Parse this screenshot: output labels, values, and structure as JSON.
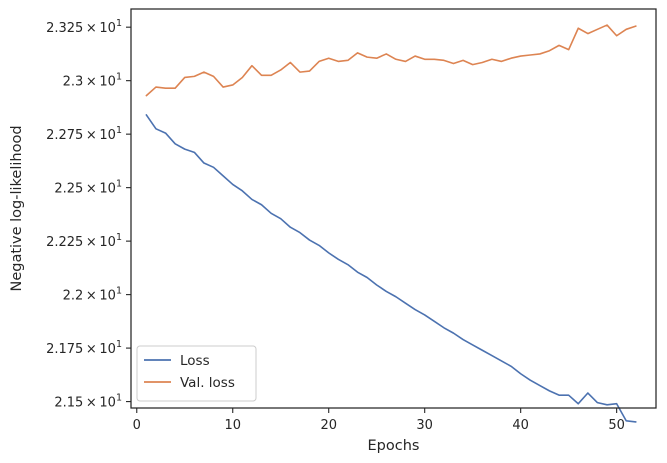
{
  "chart_data": {
    "type": "line",
    "xlabel": "Epochs",
    "ylabel": "Negative log-likelihood",
    "xlim": [
      -0.6,
      54.1
    ],
    "ylim": [
      21.47,
      23.335
    ],
    "x_ticks": [
      0,
      10,
      20,
      30,
      40,
      50
    ],
    "x_tick_labels": [
      "0",
      "10",
      "20",
      "30",
      "40",
      "50"
    ],
    "y_ticks": [
      21.5,
      21.75,
      22.0,
      22.25,
      22.5,
      22.75,
      23.0,
      23.25
    ],
    "y_tick_mantissas": [
      "2.15",
      "2.175",
      "2.2",
      "2.225",
      "2.25",
      "2.275",
      "2.3",
      "2.325"
    ],
    "y_tick_base": "10",
    "y_tick_exponent": "1",
    "y_tick_times": "×",
    "grid": false,
    "legend_position": "lower-left",
    "series": [
      {
        "name": "Loss",
        "color": "#4c72b0",
        "x": [
          1,
          2,
          3,
          4,
          5,
          6,
          7,
          8,
          9,
          10,
          11,
          12,
          13,
          14,
          15,
          16,
          17,
          18,
          19,
          20,
          21,
          22,
          23,
          24,
          25,
          26,
          27,
          28,
          29,
          30,
          31,
          32,
          33,
          34,
          35,
          36,
          37,
          38,
          39,
          40,
          41,
          42,
          43,
          44,
          45,
          46,
          47,
          48,
          49,
          50,
          51,
          52
        ],
        "values": [
          22.84,
          22.775,
          22.755,
          22.705,
          22.68,
          22.665,
          22.615,
          22.595,
          22.555,
          22.515,
          22.485,
          22.445,
          22.42,
          22.38,
          22.355,
          22.315,
          22.29,
          22.255,
          22.23,
          22.195,
          22.165,
          22.14,
          22.105,
          22.08,
          22.045,
          22.015,
          21.99,
          21.96,
          21.93,
          21.905,
          21.875,
          21.845,
          21.82,
          21.79,
          21.765,
          21.74,
          21.715,
          21.69,
          21.665,
          21.63,
          21.6,
          21.575,
          21.55,
          21.53,
          21.53,
          21.49,
          21.54,
          21.495,
          21.485,
          21.49,
          21.41,
          21.405
        ]
      },
      {
        "name": "Val. loss",
        "color": "#dd8452",
        "x": [
          1,
          2,
          3,
          4,
          5,
          6,
          7,
          8,
          9,
          10,
          11,
          12,
          13,
          14,
          15,
          16,
          17,
          18,
          19,
          20,
          21,
          22,
          23,
          24,
          25,
          26,
          27,
          28,
          29,
          30,
          31,
          32,
          33,
          34,
          35,
          36,
          37,
          38,
          39,
          40,
          41,
          42,
          43,
          44,
          45,
          46,
          47,
          48,
          49,
          50,
          51,
          52
        ],
        "values": [
          22.93,
          22.97,
          22.965,
          22.965,
          23.015,
          23.02,
          23.04,
          23.02,
          22.97,
          22.98,
          23.015,
          23.07,
          23.025,
          23.025,
          23.05,
          23.085,
          23.04,
          23.045,
          23.09,
          23.105,
          23.09,
          23.095,
          23.13,
          23.11,
          23.105,
          23.125,
          23.1,
          23.09,
          23.115,
          23.1,
          23.1,
          23.095,
          23.08,
          23.095,
          23.075,
          23.085,
          23.1,
          23.09,
          23.105,
          23.115,
          23.12,
          23.125,
          23.14,
          23.165,
          23.145,
          23.245,
          23.22,
          23.24,
          23.26,
          23.21,
          23.24,
          23.255
        ]
      }
    ]
  }
}
